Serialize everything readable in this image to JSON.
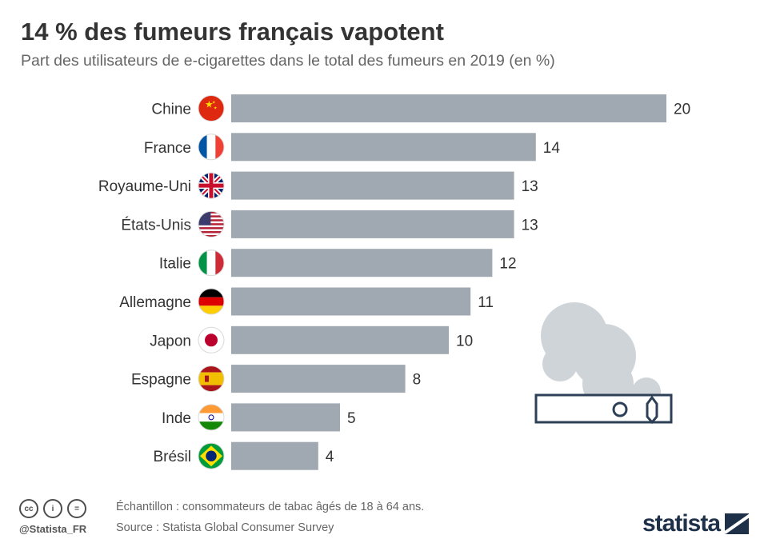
{
  "title": "14 % des fumeurs français vapotent",
  "subtitle": "Part des utilisateurs de e-cigarettes dans le total des fumeurs en 2019 (en %)",
  "footer": {
    "handle": "@Statista_FR",
    "note": "Échantillon : consommateurs de tabac âgés de 18 à 64 ans.",
    "source": "Source : Statista Global Consumer Survey",
    "brand": "statista"
  },
  "colors": {
    "bar": "#a0a9b1",
    "text": "#333333",
    "smoke": "#cfd4d8",
    "ecig": "#2e4057"
  },
  "chart_data": {
    "type": "bar",
    "orientation": "horizontal",
    "categories": [
      "Chine",
      "France",
      "Royaume-Uni",
      "États-Unis",
      "Italie",
      "Allemagne",
      "Japon",
      "Espagne",
      "Inde",
      "Brésil"
    ],
    "values": [
      20,
      14,
      13,
      13,
      12,
      11,
      10,
      8,
      5,
      4
    ],
    "title": "14 % des fumeurs français vapotent",
    "subtitle": "Part des utilisateurs de e-cigarettes dans le total des fumeurs en 2019 (en %)",
    "xlim": [
      0,
      20
    ],
    "grid": false,
    "legend": "none",
    "flag_icons": [
      "china-flag-icon",
      "france-flag-icon",
      "uk-flag-icon",
      "usa-flag-icon",
      "italy-flag-icon",
      "germany-flag-icon",
      "japan-flag-icon",
      "spain-flag-icon",
      "india-flag-icon",
      "brazil-flag-icon"
    ]
  }
}
